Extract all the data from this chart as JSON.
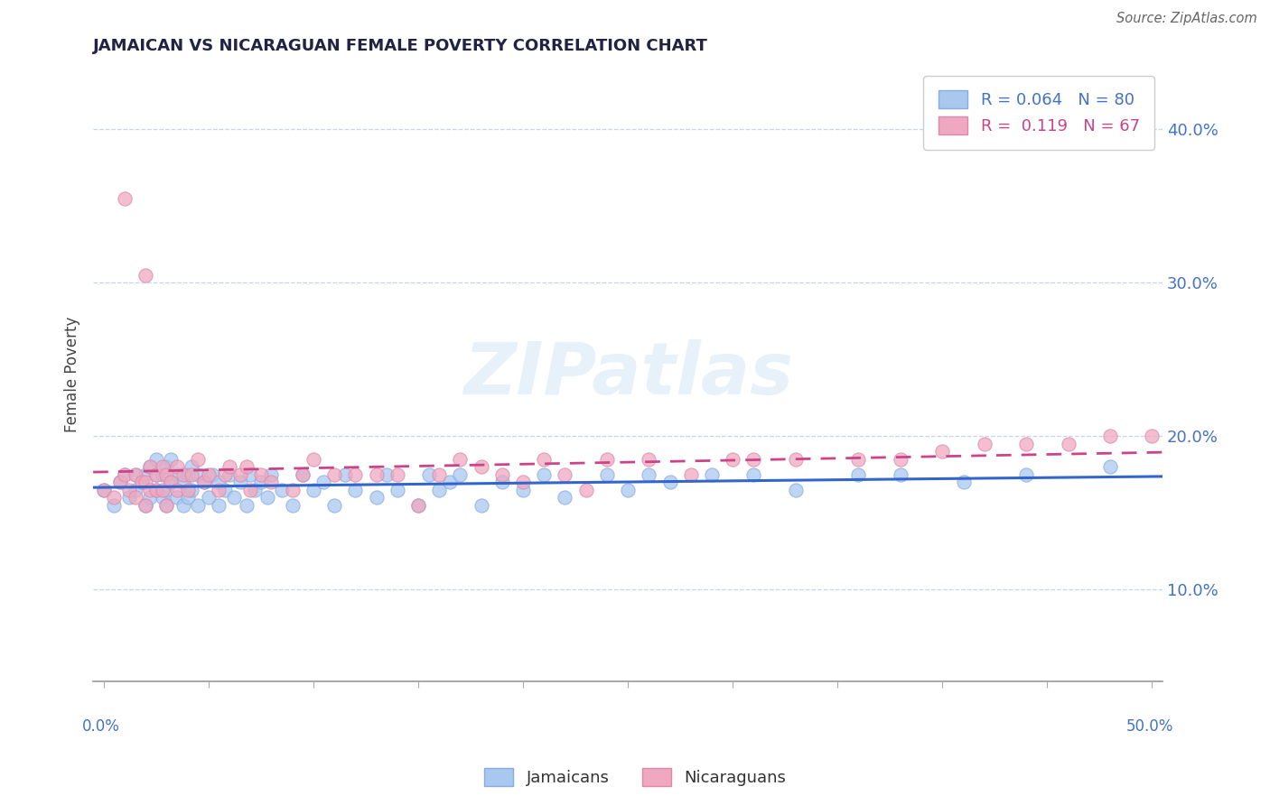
{
  "title": "JAMAICAN VS NICARAGUAN FEMALE POVERTY CORRELATION CHART",
  "source": "Source: ZipAtlas.com",
  "xlabel_bottom_left": "0.0%",
  "xlabel_bottom_right": "50.0%",
  "ylabel": "Female Poverty",
  "yticks": [
    0.1,
    0.2,
    0.3,
    0.4
  ],
  "ytick_labels": [
    "10.0%",
    "20.0%",
    "30.0%",
    "40.0%"
  ],
  "xlim": [
    -0.005,
    0.505
  ],
  "ylim": [
    0.04,
    0.44
  ],
  "jamaicans_color": "#A8C8F0",
  "nicaraguans_color": "#F0A8C0",
  "jamaicans_line_color": "#3366CC",
  "nicaraguans_line_color": "#CC4488",
  "watermark": "ZIPatlas",
  "legend_R_jamaicans": "R = 0.064",
  "legend_N_jamaicans": "N = 80",
  "legend_R_nicaraguans": "R =  0.119",
  "legend_N_nicaraguans": "N = 67",
  "jamaicans_x": [
    0.0,
    0.005,
    0.008,
    0.01,
    0.012,
    0.015,
    0.015,
    0.018,
    0.02,
    0.02,
    0.022,
    0.022,
    0.025,
    0.025,
    0.025,
    0.028,
    0.028,
    0.03,
    0.03,
    0.03,
    0.032,
    0.032,
    0.035,
    0.035,
    0.038,
    0.038,
    0.04,
    0.04,
    0.042,
    0.042,
    0.045,
    0.045,
    0.048,
    0.05,
    0.052,
    0.055,
    0.055,
    0.058,
    0.06,
    0.062,
    0.065,
    0.068,
    0.07,
    0.072,
    0.075,
    0.078,
    0.08,
    0.085,
    0.09,
    0.095,
    0.1,
    0.105,
    0.11,
    0.115,
    0.12,
    0.13,
    0.135,
    0.14,
    0.15,
    0.155,
    0.16,
    0.165,
    0.17,
    0.18,
    0.19,
    0.2,
    0.21,
    0.22,
    0.24,
    0.25,
    0.26,
    0.27,
    0.29,
    0.31,
    0.33,
    0.36,
    0.38,
    0.41,
    0.44,
    0.48
  ],
  "jamaicans_y": [
    0.165,
    0.155,
    0.17,
    0.175,
    0.16,
    0.165,
    0.175,
    0.17,
    0.155,
    0.175,
    0.16,
    0.18,
    0.165,
    0.175,
    0.185,
    0.16,
    0.175,
    0.155,
    0.165,
    0.18,
    0.17,
    0.185,
    0.16,
    0.175,
    0.155,
    0.17,
    0.16,
    0.175,
    0.165,
    0.18,
    0.155,
    0.175,
    0.17,
    0.16,
    0.175,
    0.155,
    0.17,
    0.165,
    0.175,
    0.16,
    0.17,
    0.155,
    0.175,
    0.165,
    0.17,
    0.16,
    0.175,
    0.165,
    0.155,
    0.175,
    0.165,
    0.17,
    0.155,
    0.175,
    0.165,
    0.16,
    0.175,
    0.165,
    0.155,
    0.175,
    0.165,
    0.17,
    0.175,
    0.155,
    0.17,
    0.165,
    0.175,
    0.16,
    0.175,
    0.165,
    0.175,
    0.17,
    0.175,
    0.175,
    0.165,
    0.175,
    0.175,
    0.17,
    0.175,
    0.18
  ],
  "nicaraguans_x": [
    0.0,
    0.005,
    0.008,
    0.01,
    0.012,
    0.015,
    0.015,
    0.018,
    0.02,
    0.02,
    0.022,
    0.022,
    0.025,
    0.025,
    0.028,
    0.028,
    0.03,
    0.03,
    0.032,
    0.035,
    0.035,
    0.038,
    0.04,
    0.042,
    0.045,
    0.048,
    0.05,
    0.055,
    0.058,
    0.06,
    0.065,
    0.068,
    0.07,
    0.075,
    0.08,
    0.09,
    0.095,
    0.1,
    0.11,
    0.12,
    0.13,
    0.14,
    0.15,
    0.16,
    0.17,
    0.18,
    0.19,
    0.2,
    0.21,
    0.22,
    0.23,
    0.24,
    0.26,
    0.28,
    0.3,
    0.31,
    0.33,
    0.36,
    0.38,
    0.4,
    0.42,
    0.44,
    0.46,
    0.48,
    0.5,
    0.01,
    0.02
  ],
  "nicaraguans_y": [
    0.165,
    0.16,
    0.17,
    0.175,
    0.165,
    0.16,
    0.175,
    0.17,
    0.155,
    0.17,
    0.165,
    0.18,
    0.165,
    0.175,
    0.165,
    0.18,
    0.155,
    0.175,
    0.17,
    0.165,
    0.18,
    0.175,
    0.165,
    0.175,
    0.185,
    0.17,
    0.175,
    0.165,
    0.175,
    0.18,
    0.175,
    0.18,
    0.165,
    0.175,
    0.17,
    0.165,
    0.175,
    0.185,
    0.175,
    0.175,
    0.175,
    0.175,
    0.155,
    0.175,
    0.185,
    0.18,
    0.175,
    0.17,
    0.185,
    0.175,
    0.165,
    0.185,
    0.185,
    0.175,
    0.185,
    0.185,
    0.185,
    0.185,
    0.185,
    0.19,
    0.195,
    0.195,
    0.195,
    0.2,
    0.2,
    0.355,
    0.305
  ]
}
